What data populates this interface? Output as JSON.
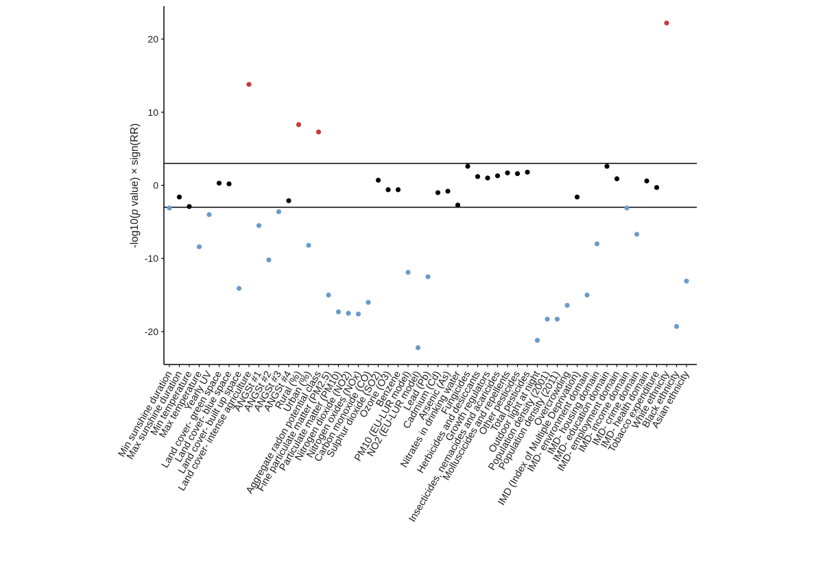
{
  "chart_data": {
    "type": "scatter",
    "title": "",
    "ylabel": "-log10(p value) × sign(RR)",
    "ylabel_parts": {
      "prefix": "-log10(",
      "italic": "p",
      "suffix": " value) × sign(RR)"
    },
    "xlabel": "",
    "ylim": [
      -24.5,
      24.5
    ],
    "yticks": [
      -20,
      -10,
      0,
      10,
      20
    ],
    "threshold_lines": [
      3,
      -3
    ],
    "grid": false,
    "legend": "none",
    "colors": {
      "significant_positive": "#c9393a",
      "not_significant": "#000000",
      "significant_negative": "#6a9bc9"
    },
    "categories": [
      "Min sunshine duration",
      "Max sunshine duration",
      "Min temperature",
      "Max temperature",
      "Yearly UV",
      "Land cover- green space",
      "Land cover- blue space",
      "Land cover- built up space",
      "Land cover- intense agriculture",
      "ANGSt #1",
      "ANGSt #2",
      "ANGSt #3",
      "ANGSt #4",
      "Rural (%)",
      "Urban (%)",
      "Aggregate radon potential class",
      "Fine particulate matter (PM2.5)",
      "Particulate matter (PM10)",
      "Nitrogen dioxide (NO2)",
      "Nitrogen oxides (NOx)",
      "Carbon monoxide (CO)",
      "Sulphur dioxide (SO2)",
      "Ozone (O3)",
      "Benzene",
      "PM10 (EU-LUR model)",
      "NO2 (EU-LUR model)",
      "Lead (Pb)",
      "Cadmium (Cd)",
      "Arsenic (As)",
      "Nitrates in drinking water",
      "Fungicides",
      "Herbicides and desiccants",
      "Growth regulators",
      "Insecticides, nemacides and acaricides",
      "Molluscicides and repellents",
      "Other pesticides",
      "Total pesticides",
      "Outdoor light at night",
      "Population density (2001)",
      "Population density (2011)",
      "Overcrowding",
      "IMD (Index of Multiple Deprivation)",
      "IMD- environment domain",
      "IMD- housing domain",
      "IMD- education domain",
      "IMD- employment domain",
      "IMD- income domain",
      "IMD- crime domain",
      "IMD- health domain",
      "Tobacco expenditure",
      "White ethnicity",
      "Black ethnicity",
      "Asian ethnicity"
    ],
    "series": [
      {
        "name": "-log10(p value) x sign(RR)",
        "values": [
          -3.1,
          -1.6,
          -2.9,
          -8.4,
          -4.0,
          0.3,
          0.2,
          -14.1,
          13.8,
          -5.5,
          -10.2,
          -3.6,
          -2.1,
          8.3,
          -8.2,
          7.3,
          -15.0,
          -17.3,
          -17.5,
          -17.6,
          -16.0,
          0.7,
          -0.6,
          -0.6,
          -11.9,
          -22.2,
          -12.5,
          -1.0,
          -0.8,
          -2.7,
          2.6,
          1.2,
          1.0,
          1.3,
          1.7,
          1.6,
          1.8,
          -21.2,
          -18.3,
          -18.3,
          -16.4,
          -1.6,
          -15.0,
          -8.0,
          2.6,
          0.9,
          -3.1,
          -6.7,
          0.6,
          -0.3,
          22.2,
          -19.3,
          -13.1
        ],
        "point_colors": [
          "#6a9bc9",
          "#000000",
          "#000000",
          "#6a9bc9",
          "#6a9bc9",
          "#000000",
          "#000000",
          "#6a9bc9",
          "#c9393a",
          "#6a9bc9",
          "#6a9bc9",
          "#6a9bc9",
          "#000000",
          "#c9393a",
          "#6a9bc9",
          "#c9393a",
          "#6a9bc9",
          "#6a9bc9",
          "#6a9bc9",
          "#6a9bc9",
          "#6a9bc9",
          "#000000",
          "#000000",
          "#000000",
          "#6a9bc9",
          "#6a9bc9",
          "#6a9bc9",
          "#000000",
          "#000000",
          "#000000",
          "#000000",
          "#000000",
          "#000000",
          "#000000",
          "#000000",
          "#000000",
          "#000000",
          "#6a9bc9",
          "#6a9bc9",
          "#6a9bc9",
          "#6a9bc9",
          "#000000",
          "#6a9bc9",
          "#6a9bc9",
          "#000000",
          "#000000",
          "#6a9bc9",
          "#6a9bc9",
          "#000000",
          "#000000",
          "#c9393a",
          "#6a9bc9",
          "#6a9bc9"
        ]
      }
    ]
  }
}
